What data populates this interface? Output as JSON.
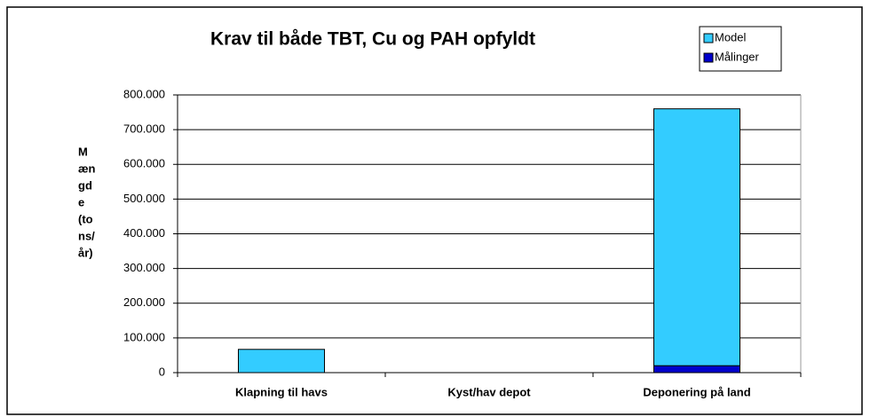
{
  "chart_data": {
    "type": "stacked_bar",
    "title": "Krav til både TBT, Cu og PAH opfyldt",
    "ylabel": [
      "M",
      "æn",
      "gd",
      "e",
      "(to",
      "ns/",
      "år)"
    ],
    "categories": [
      "Klapning til havs",
      "Kyst/hav depot",
      "Deponering på land"
    ],
    "series": [
      {
        "name": "Model",
        "color": "#33ccff",
        "values": [
          67000,
          0,
          740000
        ]
      },
      {
        "name": "Målinger",
        "color": "#0000cc",
        "values": [
          0,
          0,
          20000
        ]
      }
    ],
    "ylim": [
      0,
      800000
    ],
    "yticks": [
      0,
      {
        "value": 100000,
        "label": "100.000"
      },
      {
        "value": 200000,
        "label": "200.000"
      },
      {
        "value": 300000,
        "label": "300.000"
      },
      {
        "value": 400000,
        "label": "400.000"
      },
      {
        "value": 500000,
        "label": "500.000"
      },
      {
        "value": 600000,
        "label": "600.000"
      },
      {
        "value": 700000,
        "label": "700.000"
      },
      {
        "value": 800000,
        "label": "800.000"
      }
    ],
    "grid": true,
    "legend": "top-right"
  }
}
